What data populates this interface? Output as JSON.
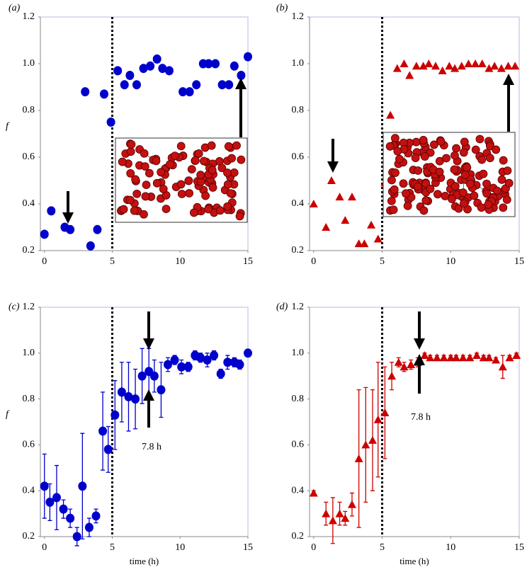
{
  "chart_data": [
    {
      "type": "scatter",
      "label": "(a)",
      "ylabel": "f",
      "marker": "circle",
      "color": "#0000cc",
      "x": [
        0,
        0.5,
        1.5,
        1.9,
        3.0,
        3.4,
        3.9,
        4.4,
        4.9,
        5.4,
        5.9,
        6.3,
        6.8,
        7.3,
        7.8,
        8.3,
        8.7,
        9.2,
        10.2,
        10.7,
        11.2,
        11.7,
        12.1,
        12.6,
        13.1,
        13.6,
        14.0,
        14.5,
        15.0
      ],
      "values": [
        0.27,
        0.37,
        0.3,
        0.29,
        0.88,
        0.22,
        0.29,
        0.87,
        0.75,
        0.97,
        0.91,
        0.95,
        0.91,
        0.98,
        0.99,
        1.02,
        0.98,
        0.97,
        0.88,
        0.88,
        0.91,
        1.0,
        1.0,
        1.0,
        0.91,
        0.91,
        0.99,
        0.95,
        1.03
      ],
      "xlim": [
        -0.3,
        15
      ],
      "ylim": [
        0.2,
        1.2
      ],
      "xticks": [
        0,
        5,
        10,
        15
      ],
      "yticks": [
        0.2,
        0.4,
        0.6,
        0.8,
        {
          "value": 1,
          "label": "1.0"
        },
        1.2
      ],
      "vline": 5
    },
    {
      "type": "scatter",
      "label": "(b)",
      "marker": "triangle",
      "color": "#cc0000",
      "x": [
        0,
        0.9,
        1.3,
        1.9,
        2.3,
        2.8,
        3.3,
        3.7,
        4.2,
        4.7,
        5.2,
        5.6,
        6.1,
        6.6,
        7.0,
        7.5,
        8.0,
        8.4,
        8.9,
        9.4,
        9.9,
        10.3,
        10.8,
        11.3,
        11.8,
        12.3,
        12.8,
        13.2,
        13.7,
        14.2,
        14.7
      ],
      "values": [
        0.4,
        0.3,
        0.5,
        0.43,
        0.33,
        0.43,
        0.23,
        0.23,
        0.31,
        0.25,
        0.49,
        0.78,
        0.98,
        1.0,
        0.95,
        0.99,
        0.99,
        1.0,
        0.99,
        0.97,
        0.99,
        0.98,
        0.99,
        1.0,
        1.0,
        1.0,
        0.98,
        0.99,
        0.98,
        0.99,
        0.99
      ],
      "xlim": [
        -0.3,
        15
      ],
      "ylim": [
        0.2,
        1.2
      ],
      "xticks": [
        0,
        5,
        10,
        15
      ],
      "yticks": [
        0.2,
        0.4,
        0.6,
        0.8,
        {
          "value": 1,
          "label": "1.0"
        },
        1.2
      ],
      "vline": 5
    },
    {
      "type": "scatter",
      "label": "(c)",
      "ylabel": "f",
      "xlabel": "time (h)",
      "annotation": "7.8 h",
      "marker": "circle",
      "color": "#0000cc",
      "x": [
        0,
        0.4,
        0.9,
        1.4,
        1.9,
        2.4,
        2.8,
        3.3,
        3.8,
        4.3,
        4.7,
        5.2,
        5.7,
        6.2,
        6.7,
        7.2,
        7.7,
        8.1,
        8.6,
        9.1,
        9.6,
        10.1,
        10.6,
        11.1,
        11.5,
        12.0,
        12.5,
        13.0,
        13.5,
        14.0,
        14.4,
        15.0
      ],
      "values": [
        0.42,
        0.35,
        0.37,
        0.32,
        0.28,
        0.2,
        0.42,
        0.24,
        0.29,
        0.66,
        0.58,
        0.73,
        0.83,
        0.81,
        0.8,
        0.9,
        0.92,
        0.9,
        0.84,
        0.95,
        0.97,
        0.94,
        0.94,
        0.99,
        0.98,
        0.97,
        0.99,
        0.91,
        0.96,
        0.96,
        0.95,
        1.0
      ],
      "errors": [
        0.14,
        0.08,
        0.14,
        0.04,
        0.04,
        0.04,
        0.23,
        0.04,
        0.03,
        0.17,
        0.1,
        0.15,
        0.13,
        0.15,
        0.13,
        0.12,
        0.1,
        0.07,
        0.12,
        0.03,
        0.02,
        0.03,
        0.02,
        0.02,
        0.02,
        0.03,
        0.02,
        0.02,
        0.03,
        0.02,
        0.02,
        0.01
      ],
      "xlim": [
        -0.3,
        15
      ],
      "ylim": [
        0.2,
        1.2
      ],
      "xticks": [
        0,
        5,
        10,
        15
      ],
      "yticks": [
        0.2,
        0.4,
        0.6,
        0.8,
        {
          "value": 1,
          "label": "1.0"
        },
        1.2
      ],
      "vline": 5
    },
    {
      "type": "scatter",
      "label": "(d)",
      "xlabel": "time (h)",
      "annotation": "7.8 h",
      "marker": "triangle",
      "color": "#cc0000",
      "x": [
        0,
        0.9,
        1.4,
        1.9,
        2.3,
        2.8,
        3.3,
        3.8,
        4.3,
        4.7,
        5.2,
        5.7,
        6.2,
        6.6,
        7.1,
        7.6,
        8.1,
        8.5,
        9.0,
        9.5,
        10.0,
        10.4,
        10.9,
        11.4,
        11.9,
        12.4,
        12.8,
        13.3,
        13.8,
        14.3,
        14.8
      ],
      "values": [
        0.39,
        0.3,
        0.27,
        0.3,
        0.28,
        0.34,
        0.54,
        0.6,
        0.62,
        0.71,
        0.74,
        0.9,
        0.96,
        0.94,
        0.95,
        0.96,
        0.99,
        0.98,
        0.98,
        0.98,
        0.98,
        0.98,
        0.98,
        0.98,
        0.99,
        0.98,
        0.98,
        0.97,
        0.94,
        0.98,
        0.99
      ],
      "errors": [
        0.01,
        0.05,
        0.1,
        0.05,
        0.03,
        0.05,
        0.3,
        0.25,
        0.22,
        0.25,
        0.2,
        0.06,
        0.02,
        0.02,
        0.02,
        0.02,
        0.01,
        0.01,
        0.01,
        0.01,
        0.01,
        0.01,
        0.01,
        0.01,
        0.01,
        0.01,
        0.01,
        0.01,
        0.05,
        0.01,
        0.01
      ],
      "xlim": [
        -0.3,
        15
      ],
      "ylim": [
        0.2,
        1.2
      ],
      "xticks": [
        0,
        5,
        10,
        15
      ],
      "yticks": [
        0.2,
        0.4,
        0.6,
        0.8,
        {
          "value": 1,
          "label": "1.0"
        },
        1.2
      ],
      "vline": 5
    }
  ]
}
